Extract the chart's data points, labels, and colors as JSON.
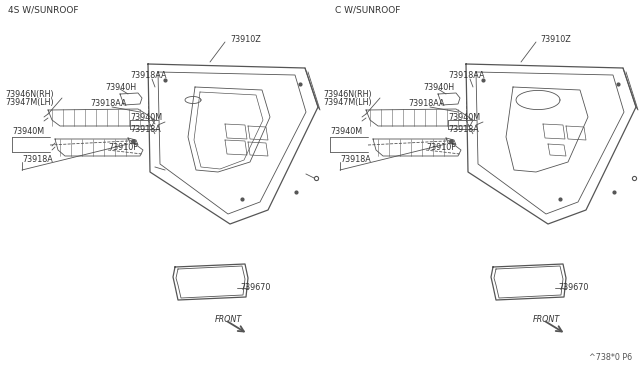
{
  "bg_color": "#ffffff",
  "left_label": "4S W/SUNROOF",
  "right_label": "C W/SUNROOF",
  "line_color": "#555555",
  "text_color": "#333333",
  "page_code": "^738*0 P6",
  "lw_main": 0.9,
  "lw_thin": 0.6,
  "font_size_label": 5.8,
  "font_size_header": 6.5
}
